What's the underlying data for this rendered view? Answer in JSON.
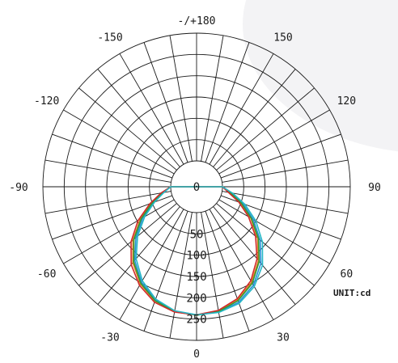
{
  "chart_data": {
    "type": "polar",
    "title": "",
    "unit_label": "UNIT:cd",
    "r_max": 300,
    "r_ticks": [
      50,
      100,
      150,
      200,
      250
    ],
    "r_tick_labels": [
      "50",
      "100",
      "150",
      "200",
      "250"
    ],
    "center_label": "0",
    "angle_ticks": [
      {
        "angle": 0,
        "label": "0"
      },
      {
        "angle": 30,
        "label": "30"
      },
      {
        "angle": 60,
        "label": "60"
      },
      {
        "angle": 90,
        "label": "90"
      },
      {
        "angle": 120,
        "label": "120"
      },
      {
        "angle": 150,
        "label": "150"
      },
      {
        "angle": 180,
        "label": "-/+180"
      },
      {
        "angle": -150,
        "label": "-150"
      },
      {
        "angle": -120,
        "label": "-120"
      },
      {
        "angle": -90,
        "label": "-90"
      },
      {
        "angle": -60,
        "label": "-60"
      },
      {
        "angle": -30,
        "label": "-30"
      }
    ],
    "spoke_step_deg": 10,
    "grid": true,
    "series": [
      {
        "color": "#2a8fd6",
        "points": [
          [
            -90,
            0
          ],
          [
            -80,
            20
          ],
          [
            -70,
            48
          ],
          [
            -60,
            85
          ],
          [
            -50,
            125
          ],
          [
            -40,
            165
          ],
          [
            -30,
            198
          ],
          [
            -20,
            222
          ],
          [
            -10,
            236
          ],
          [
            0,
            240
          ],
          [
            10,
            238
          ],
          [
            20,
            228
          ],
          [
            30,
            206
          ],
          [
            40,
            174
          ],
          [
            50,
            134
          ],
          [
            60,
            93
          ],
          [
            70,
            55
          ],
          [
            80,
            22
          ],
          [
            90,
            0
          ]
        ]
      },
      {
        "color": "#e07a1c",
        "points": [
          [
            -90,
            0
          ],
          [
            -80,
            22
          ],
          [
            -70,
            52
          ],
          [
            -60,
            92
          ],
          [
            -50,
            134
          ],
          [
            -40,
            172
          ],
          [
            -30,
            203
          ],
          [
            -20,
            225
          ],
          [
            -10,
            237
          ],
          [
            0,
            240
          ],
          [
            10,
            236
          ],
          [
            20,
            222
          ],
          [
            30,
            198
          ],
          [
            40,
            165
          ],
          [
            50,
            126
          ],
          [
            60,
            86
          ],
          [
            70,
            50
          ],
          [
            80,
            18
          ],
          [
            90,
            0
          ]
        ]
      },
      {
        "color": "#2f9b3a",
        "points": [
          [
            -90,
            0
          ],
          [
            -80,
            21
          ],
          [
            -70,
            50
          ],
          [
            -60,
            89
          ],
          [
            -50,
            131
          ],
          [
            -40,
            169
          ],
          [
            -30,
            201
          ],
          [
            -20,
            224
          ],
          [
            -10,
            237
          ],
          [
            0,
            241
          ],
          [
            10,
            237
          ],
          [
            20,
            224
          ],
          [
            30,
            201
          ],
          [
            40,
            168
          ],
          [
            50,
            129
          ],
          [
            60,
            88
          ],
          [
            70,
            51
          ],
          [
            80,
            19
          ],
          [
            90,
            0
          ]
        ]
      },
      {
        "color": "#d12a2a",
        "points": [
          [
            -90,
            0
          ],
          [
            -80,
            24
          ],
          [
            -70,
            56
          ],
          [
            -60,
            98
          ],
          [
            -50,
            140
          ],
          [
            -40,
            178
          ],
          [
            -30,
            207
          ],
          [
            -20,
            228
          ],
          [
            -10,
            238
          ],
          [
            0,
            240
          ],
          [
            10,
            234
          ],
          [
            20,
            219
          ],
          [
            30,
            194
          ],
          [
            40,
            160
          ],
          [
            50,
            120
          ],
          [
            60,
            80
          ],
          [
            70,
            45
          ],
          [
            80,
            15
          ],
          [
            90,
            0
          ]
        ]
      },
      {
        "color": "#25b8c6",
        "points": [
          [
            -90,
            0
          ],
          [
            -80,
            17
          ],
          [
            -70,
            44
          ],
          [
            -60,
            80
          ],
          [
            -50,
            120
          ],
          [
            -40,
            160
          ],
          [
            -30,
            194
          ],
          [
            -20,
            220
          ],
          [
            -10,
            235
          ],
          [
            0,
            240
          ],
          [
            10,
            239
          ],
          [
            20,
            231
          ],
          [
            30,
            210
          ],
          [
            40,
            180
          ],
          [
            50,
            141
          ],
          [
            60,
            100
          ],
          [
            70,
            60
          ],
          [
            80,
            25
          ],
          [
            90,
            0
          ]
        ]
      }
    ]
  }
}
